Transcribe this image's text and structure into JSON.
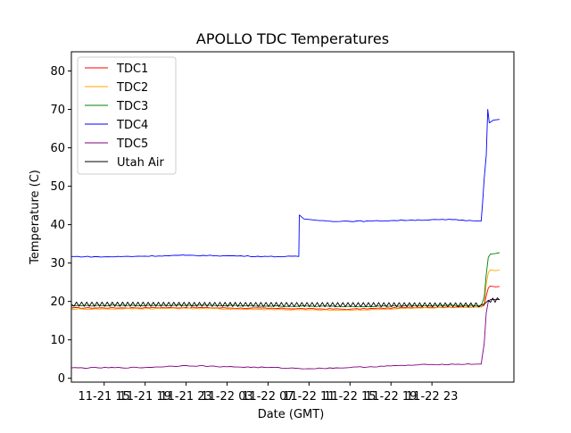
{
  "chart_data": {
    "type": "line",
    "title": "APOLLO TDC Temperatures",
    "xlabel": "Date (GMT)",
    "ylabel": "Temperature (C)",
    "ylim": [
      -1,
      85
    ],
    "xlim_hours": [
      -3.2,
      40.0
    ],
    "y_ticks": [
      0,
      10,
      20,
      30,
      40,
      50,
      60,
      70,
      80
    ],
    "x_ticks": [
      {
        "hour": 0,
        "label": "11-21 15"
      },
      {
        "hour": 4,
        "label": "11-21 19"
      },
      {
        "hour": 8,
        "label": "11-21 23"
      },
      {
        "hour": 12,
        "label": "11-22 03"
      },
      {
        "hour": 16,
        "label": "11-22 07"
      },
      {
        "hour": 20,
        "label": "11-22 11"
      },
      {
        "hour": 24,
        "label": "11-22 15"
      },
      {
        "hour": 28,
        "label": "11-22 19"
      },
      {
        "hour": 32,
        "label": "11-22 23"
      }
    ],
    "grid": false,
    "legend_position": "top-left",
    "series": [
      {
        "name": "TDC1",
        "color": "#ff0000",
        "points": [
          [
            -3.2,
            18.3
          ],
          [
            8,
            18.4
          ],
          [
            16,
            18.2
          ],
          [
            24,
            18.0
          ],
          [
            31,
            18.5
          ],
          [
            36.8,
            18.6
          ],
          [
            37.1,
            19.0
          ],
          [
            37.3,
            21.5
          ],
          [
            37.5,
            23.5
          ],
          [
            37.7,
            24.0
          ],
          [
            38.2,
            23.8
          ],
          [
            38.6,
            23.9
          ]
        ]
      },
      {
        "name": "TDC2",
        "color": "#ffa500",
        "points": [
          [
            -3.2,
            18.0
          ],
          [
            8,
            18.2
          ],
          [
            16,
            17.9
          ],
          [
            24,
            17.7
          ],
          [
            31,
            18.3
          ],
          [
            36.8,
            18.5
          ],
          [
            37.1,
            19.5
          ],
          [
            37.3,
            24.5
          ],
          [
            37.5,
            27.5
          ],
          [
            37.7,
            28.2
          ],
          [
            38.2,
            28.0
          ],
          [
            38.6,
            28.2
          ]
        ]
      },
      {
        "name": "TDC3",
        "color": "#008000",
        "points": [
          [
            -3.2,
            18.9
          ],
          [
            8,
            19.0
          ],
          [
            16,
            18.8
          ],
          [
            24,
            18.7
          ],
          [
            31,
            18.9
          ],
          [
            36.8,
            19.0
          ],
          [
            37.1,
            21.0
          ],
          [
            37.3,
            27.0
          ],
          [
            37.5,
            31.5
          ],
          [
            37.7,
            32.3
          ],
          [
            38.2,
            32.5
          ],
          [
            38.6,
            32.7
          ]
        ]
      },
      {
        "name": "TDC4",
        "color": "#0000ff",
        "points": [
          [
            -3.2,
            31.7
          ],
          [
            0,
            31.6
          ],
          [
            4,
            31.8
          ],
          [
            8,
            32.0
          ],
          [
            12,
            31.9
          ],
          [
            16,
            31.7
          ],
          [
            19.0,
            31.7
          ],
          [
            19.05,
            42.5
          ],
          [
            19.5,
            41.5
          ],
          [
            20.5,
            41.2
          ],
          [
            22,
            40.9
          ],
          [
            26,
            40.9
          ],
          [
            30,
            41.2
          ],
          [
            34,
            41.3
          ],
          [
            36.0,
            41.0
          ],
          [
            36.8,
            40.9
          ],
          [
            36.95,
            46.0
          ],
          [
            37.1,
            52.0
          ],
          [
            37.3,
            58.0
          ],
          [
            37.45,
            70.0
          ],
          [
            37.6,
            66.5
          ],
          [
            38.0,
            67.2
          ],
          [
            38.6,
            67.4
          ]
        ]
      },
      {
        "name": "TDC5",
        "color": "#800080",
        "points": [
          [
            -3.2,
            2.7
          ],
          [
            4,
            2.8
          ],
          [
            8,
            3.3
          ],
          [
            12,
            3.0
          ],
          [
            16,
            2.8
          ],
          [
            20,
            2.5
          ],
          [
            24,
            2.8
          ],
          [
            28,
            3.2
          ],
          [
            32,
            3.6
          ],
          [
            36.5,
            3.7
          ],
          [
            36.8,
            3.7
          ],
          [
            37.1,
            9.0
          ],
          [
            37.3,
            17.0
          ],
          [
            37.5,
            20.0
          ],
          [
            37.7,
            20.5
          ],
          [
            38.6,
            20.5
          ]
        ]
      },
      {
        "name": "Utah Air",
        "color": "#000000",
        "points": [
          [
            -3.2,
            19.3
          ],
          [
            36.8,
            19.1
          ],
          [
            37.1,
            19.3
          ],
          [
            37.5,
            20.3
          ],
          [
            38.6,
            20.4
          ]
        ]
      }
    ]
  }
}
